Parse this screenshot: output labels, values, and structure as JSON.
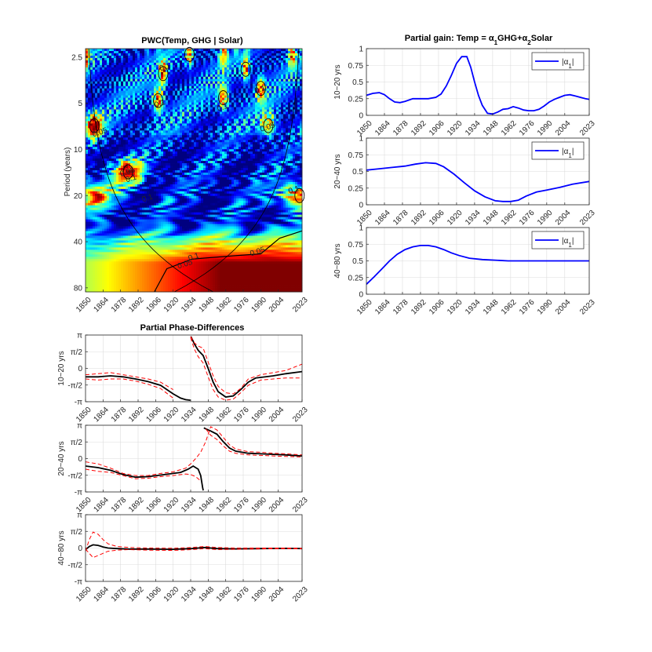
{
  "figure": {
    "year_ticks": [
      "1850",
      "1864",
      "1878",
      "1892",
      "1906",
      "1920",
      "1934",
      "1948",
      "1962",
      "1976",
      "1990",
      "2004",
      "2023"
    ],
    "background": "#ffffff",
    "grid_color": "#dcdcdc",
    "axis_color": "#262626"
  },
  "chart_data": [
    {
      "id": "pwc",
      "type": "heatmap",
      "title": "PWC(Temp, GHG | Solar)",
      "ylabel": "Period (years)",
      "x_range": [
        1850,
        2023
      ],
      "y_scale": "log",
      "y_range": [
        2.2,
        85
      ],
      "y_reversed": true,
      "y_ticks": [
        "2.5",
        "5",
        "10",
        "20",
        "40",
        "80"
      ],
      "y_tick_values": [
        2.5,
        5,
        10,
        20,
        40,
        80
      ],
      "colormap": "jet",
      "contour_labels": [
        "0.05",
        "0.05",
        "0.1",
        "0.1",
        "0.1",
        "0.1",
        "0.05",
        "0.1",
        "0.1",
        "0.05",
        "0.1",
        "0.05",
        "0.1"
      ],
      "cone_of_influence": true,
      "hotspots": [
        {
          "year": 1857,
          "period": 7.0,
          "value": 0.98
        },
        {
          "year": 1884,
          "period": 14.0,
          "value": 0.95
        },
        {
          "year": 1908,
          "period": 4.8,
          "value": 0.95
        },
        {
          "year": 1912,
          "period": 3.2,
          "value": 0.9
        },
        {
          "year": 1933,
          "period": 2.4,
          "value": 0.85
        },
        {
          "year": 1960,
          "period": 4.6,
          "value": 0.88
        },
        {
          "year": 1978,
          "period": 3.0,
          "value": 0.85
        },
        {
          "year": 1990,
          "period": 4.0,
          "value": 0.85
        },
        {
          "year": 1996,
          "period": 7.0,
          "value": 0.75
        },
        {
          "year": 2021,
          "period": 20.0,
          "value": 0.95
        },
        {
          "year": 1855,
          "period": 20.0,
          "value": 0.85
        },
        {
          "year": 1850,
          "period": 2.4,
          "value": 0.85
        },
        {
          "year": 1960,
          "period": 2.4,
          "value": 0.75
        },
        {
          "year": 2015,
          "period": 2.4,
          "value": 0.8
        }
      ],
      "low_frequency_band": {
        "period_from": 40,
        "period_to": 85,
        "value_near": 1.0
      }
    },
    {
      "id": "gain_10_20",
      "type": "line",
      "title": "Partial gain: Temp = α1GHG+α2Solar",
      "ylabel": "10~20 yrs",
      "x_range": [
        1850,
        2023
      ],
      "ylim": [
        0,
        1
      ],
      "y_ticks": [
        "0",
        "0.25",
        "0.5",
        "0.75",
        "1"
      ],
      "y_tick_values": [
        0,
        0.25,
        0.5,
        0.75,
        1
      ],
      "series": [
        {
          "name": "|α1|",
          "color": "#0000ff",
          "x": [
            1850,
            1855,
            1860,
            1864,
            1868,
            1872,
            1876,
            1880,
            1886,
            1892,
            1898,
            1904,
            1908,
            1912,
            1916,
            1920,
            1924,
            1928,
            1931,
            1934,
            1937,
            1940,
            1944,
            1948,
            1952,
            1956,
            1960,
            1964,
            1968,
            1972,
            1976,
            1980,
            1984,
            1988,
            1992,
            1996,
            2000,
            2004,
            2008,
            2012,
            2016,
            2020,
            2023
          ],
          "values": [
            0.3,
            0.33,
            0.34,
            0.31,
            0.25,
            0.2,
            0.19,
            0.21,
            0.25,
            0.25,
            0.25,
            0.27,
            0.32,
            0.44,
            0.6,
            0.78,
            0.88,
            0.88,
            0.72,
            0.5,
            0.3,
            0.15,
            0.03,
            0.02,
            0.05,
            0.09,
            0.1,
            0.13,
            0.11,
            0.08,
            0.07,
            0.07,
            0.09,
            0.14,
            0.2,
            0.24,
            0.27,
            0.3,
            0.31,
            0.29,
            0.27,
            0.25,
            0.24
          ]
        }
      ]
    },
    {
      "id": "gain_20_40",
      "type": "line",
      "ylabel": "20~40 yrs",
      "x_range": [
        1850,
        2023
      ],
      "ylim": [
        0,
        1
      ],
      "y_ticks": [
        "0",
        "0.25",
        "0.5",
        "0.75",
        "1"
      ],
      "y_tick_values": [
        0,
        0.25,
        0.5,
        0.75,
        1
      ],
      "series": [
        {
          "name": "|α1|",
          "color": "#0000ff",
          "x": [
            1850,
            1860,
            1870,
            1880,
            1888,
            1896,
            1904,
            1910,
            1918,
            1926,
            1934,
            1942,
            1950,
            1956,
            1962,
            1968,
            1974,
            1982,
            1990,
            2000,
            2010,
            2023
          ],
          "values": [
            0.52,
            0.54,
            0.56,
            0.58,
            0.61,
            0.63,
            0.62,
            0.57,
            0.46,
            0.33,
            0.21,
            0.12,
            0.06,
            0.05,
            0.05,
            0.07,
            0.13,
            0.19,
            0.22,
            0.26,
            0.31,
            0.35
          ]
        }
      ]
    },
    {
      "id": "gain_40_80",
      "type": "line",
      "ylabel": "40~80 yrs",
      "x_range": [
        1850,
        2023
      ],
      "ylim": [
        0,
        1
      ],
      "y_ticks": [
        "0",
        "0.25",
        "0.5",
        "0.75",
        "1"
      ],
      "y_tick_values": [
        0,
        0.25,
        0.5,
        0.75,
        1
      ],
      "series": [
        {
          "name": "|α1|",
          "color": "#0000ff",
          "x": [
            1850,
            1856,
            1862,
            1868,
            1874,
            1880,
            1886,
            1892,
            1898,
            1904,
            1910,
            1916,
            1922,
            1930,
            1940,
            1950,
            1960,
            1980,
            2000,
            2023
          ],
          "values": [
            0.15,
            0.26,
            0.38,
            0.5,
            0.6,
            0.67,
            0.71,
            0.73,
            0.73,
            0.71,
            0.67,
            0.62,
            0.58,
            0.54,
            0.52,
            0.51,
            0.5,
            0.5,
            0.5,
            0.5
          ]
        }
      ]
    },
    {
      "id": "phase_10_20",
      "type": "line",
      "title": "Partial Phase-Differences",
      "ylabel": "10~20 yrs",
      "x_range": [
        1850,
        2023
      ],
      "ylim": [
        -3.1416,
        3.1416
      ],
      "y_ticks": [
        "π",
        "π/2",
        "0",
        "-π/2",
        "-π"
      ],
      "y_tick_values": [
        3.1416,
        1.5708,
        0,
        -1.5708,
        -3.1416
      ],
      "series": [
        {
          "name": "phase",
          "color": "#000000",
          "x": [
            1850,
            1860,
            1870,
            1880,
            1890,
            1900,
            1910,
            1920,
            1926,
            1930,
            1933.8,
            1934.2,
            1937,
            1940,
            1944,
            1948,
            1952,
            1956,
            1962,
            1968,
            1974,
            1980,
            1986,
            1990,
            2000,
            2010,
            2023
          ],
          "values": [
            -0.8,
            -0.8,
            -0.7,
            -0.8,
            -1.0,
            -1.25,
            -1.6,
            -2.4,
            -2.8,
            -2.95,
            -3.0,
            3.0,
            2.3,
            1.7,
            1.2,
            0.0,
            -1.3,
            -2.2,
            -2.7,
            -2.6,
            -2.0,
            -1.3,
            -0.9,
            -0.85,
            -0.7,
            -0.5,
            -0.3
          ]
        },
        {
          "name": "upper bound",
          "color": "#ff0000",
          "x": [
            1850,
            1860,
            1870,
            1880,
            1890,
            1900,
            1910,
            1920,
            1934,
            1937,
            1940,
            1944,
            1948,
            1952,
            1956,
            1962,
            1968,
            1974,
            1980,
            1990,
            2000,
            2010,
            2023
          ],
          "values": [
            -0.6,
            -0.5,
            -0.4,
            -0.6,
            -0.8,
            -1.0,
            -1.3,
            -2.0,
            3.0,
            2.4,
            2.1,
            1.9,
            0.6,
            -0.7,
            -1.7,
            -2.3,
            -2.4,
            -1.9,
            -1.0,
            -0.6,
            -0.4,
            -0.2,
            0.4
          ]
        },
        {
          "name": "lower bound",
          "color": "#ff0000",
          "x": [
            1850,
            1860,
            1870,
            1880,
            1890,
            1900,
            1910,
            1920,
            1934,
            1937,
            1940,
            1944,
            1948,
            1952,
            1956,
            1962,
            1968,
            1974,
            1980,
            1990,
            2000,
            2010,
            2023
          ],
          "values": [
            -1.0,
            -1.1,
            -1.0,
            -1.0,
            -1.2,
            -1.5,
            -1.9,
            -2.8,
            2.9,
            1.8,
            1.1,
            0.5,
            -0.8,
            -2.0,
            -2.7,
            -3.0,
            -2.9,
            -2.3,
            -1.6,
            -1.1,
            -1.0,
            -0.9,
            -0.9
          ]
        }
      ]
    },
    {
      "id": "phase_20_40",
      "type": "line",
      "ylabel": "20~40 yrs",
      "x_range": [
        1850,
        2023
      ],
      "ylim": [
        -3.1416,
        3.1416
      ],
      "y_ticks": [
        "π",
        "π/2",
        "0",
        "-π/2",
        "-π"
      ],
      "y_tick_values": [
        3.1416,
        1.5708,
        0,
        -1.5708,
        -3.1416
      ],
      "series": [
        {
          "name": "phase",
          "color": "#000000",
          "x": [
            1850,
            1860,
            1870,
            1880,
            1890,
            1900,
            1910,
            1920,
            1926,
            1932,
            1936,
            1940,
            1942,
            1943.5,
            1944,
            1944.5,
            1946,
            1950,
            1955,
            1960,
            1965,
            1970,
            1980,
            1990,
            2000,
            2010,
            2023
          ],
          "values": [
            -0.7,
            -0.85,
            -1.1,
            -1.5,
            -1.75,
            -1.7,
            -1.55,
            -1.4,
            -1.3,
            -1.0,
            -0.7,
            -1.0,
            -1.6,
            -2.7,
            -3.0,
            2.9,
            2.8,
            2.6,
            2.3,
            1.6,
            1.0,
            0.7,
            0.5,
            0.45,
            0.4,
            0.35,
            0.25
          ]
        },
        {
          "name": "upper bound",
          "color": "#ff0000",
          "x": [
            1850,
            1860,
            1870,
            1880,
            1890,
            1900,
            1910,
            1920,
            1930,
            1934,
            1938,
            1942,
            1946,
            1950,
            1955,
            1960,
            1965,
            1970,
            1980,
            1990,
            2000,
            2010,
            2023
          ],
          "values": [
            -0.3,
            -0.5,
            -0.9,
            -1.4,
            -1.6,
            -1.6,
            -1.4,
            -1.25,
            -0.9,
            -0.5,
            0.0,
            0.6,
            1.6,
            3.0,
            2.7,
            2.0,
            1.3,
            0.9,
            0.65,
            0.6,
            0.5,
            0.45,
            0.35
          ]
        },
        {
          "name": "lower bound",
          "color": "#ff0000",
          "x": [
            1850,
            1860,
            1870,
            1880,
            1890,
            1900,
            1910,
            1920,
            1930,
            1934,
            1938,
            1942,
            1946,
            1950,
            1955,
            1960,
            1965,
            1970,
            1980,
            1990,
            2000,
            2010,
            2023
          ],
          "values": [
            -1.0,
            -1.2,
            -1.3,
            -1.6,
            -1.9,
            -1.85,
            -1.7,
            -1.6,
            -1.45,
            -1.5,
            -1.7,
            -2.1,
            2.8,
            2.2,
            1.8,
            1.2,
            0.7,
            0.5,
            0.35,
            0.3,
            0.25,
            0.2,
            0.15
          ]
        }
      ]
    },
    {
      "id": "phase_40_80",
      "type": "line",
      "ylabel": "40~80 yrs",
      "x_range": [
        1850,
        2023
      ],
      "ylim": [
        -3.1416,
        3.1416
      ],
      "y_ticks": [
        "π",
        "π/2",
        "0",
        "-π/2",
        "-π"
      ],
      "y_tick_values": [
        3.1416,
        1.5708,
        0,
        -1.5708,
        -3.1416
      ],
      "series": [
        {
          "name": "phase",
          "color": "#000000",
          "x": [
            1850,
            1853,
            1856,
            1860,
            1864,
            1868,
            1875,
            1885,
            1900,
            1920,
            1935,
            1945,
            1955,
            1970,
            1990,
            2010,
            2023
          ],
          "values": [
            -0.15,
            0.15,
            0.3,
            0.25,
            0.1,
            0.0,
            -0.05,
            -0.1,
            -0.1,
            -0.12,
            -0.05,
            0.05,
            -0.05,
            -0.08,
            -0.05,
            -0.03,
            -0.05
          ]
        },
        {
          "name": "upper bound",
          "color": "#ff0000",
          "x": [
            1850,
            1853,
            1856,
            1860,
            1864,
            1868,
            1875,
            1885,
            1900,
            1920,
            1935,
            1945,
            1955,
            1970,
            1990,
            2010,
            2023
          ],
          "values": [
            -0.3,
            0.8,
            1.5,
            1.3,
            0.8,
            0.4,
            0.15,
            0.05,
            0.0,
            -0.02,
            0.05,
            0.15,
            0.05,
            0.0,
            0.0,
            0.0,
            -0.02
          ]
        },
        {
          "name": "lower bound",
          "color": "#ff0000",
          "x": [
            1850,
            1853,
            1856,
            1860,
            1864,
            1868,
            1875,
            1885,
            1900,
            1920,
            1935,
            1945,
            1955,
            1970,
            1990,
            2010,
            2023
          ],
          "values": [
            -0.1,
            -0.5,
            -0.9,
            -0.7,
            -0.5,
            -0.3,
            -0.2,
            -0.15,
            -0.2,
            -0.22,
            -0.15,
            -0.05,
            -0.15,
            -0.12,
            -0.08,
            -0.06,
            -0.08
          ]
        }
      ]
    }
  ]
}
